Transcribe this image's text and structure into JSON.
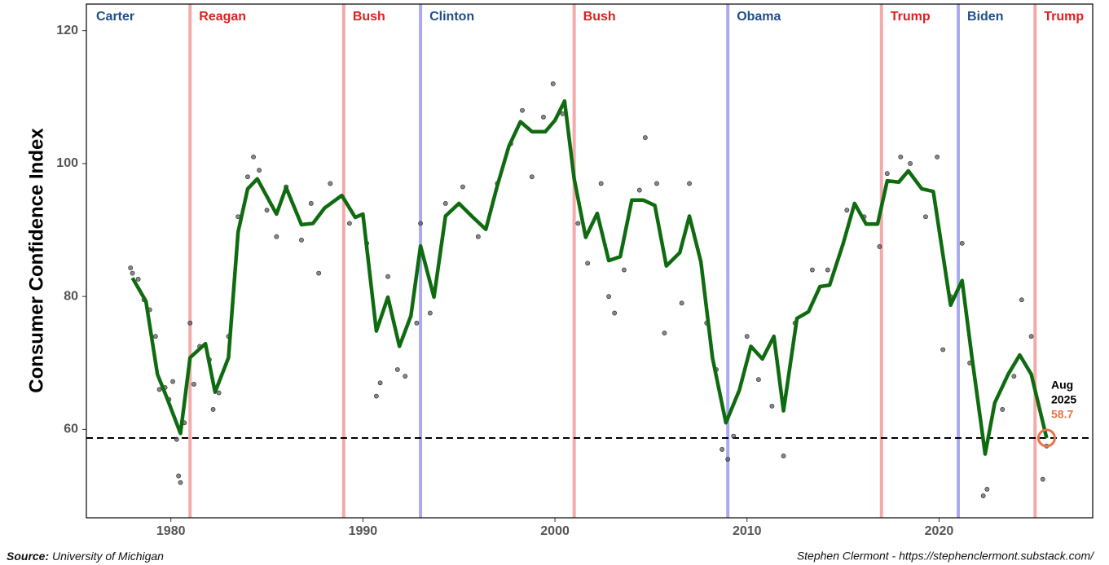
{
  "chart_data": {
    "type": "line",
    "y_label": "Consumer Confidence Index",
    "xlim": [
      1975.6,
      2028
    ],
    "xticks": [
      1980,
      1990,
      2000,
      2010,
      2020
    ],
    "ylim": [
      46.7,
      124
    ],
    "yticks": [
      60,
      80,
      100,
      120
    ],
    "reference_line": 58.7,
    "presidents": [
      {
        "name": "Carter",
        "label_color": "#1f4e8c"
      },
      {
        "name": "Reagan",
        "start": 1981,
        "label_color": "#e0201e",
        "line_color": "#f4aaaa"
      },
      {
        "name": "Bush",
        "start": 1989,
        "label_color": "#e0201e",
        "line_color": "#f4aaaa"
      },
      {
        "name": "Clinton",
        "start": 1993,
        "label_color": "#1f4e8c",
        "line_color": "#aaaaf0"
      },
      {
        "name": "Bush",
        "start": 2001,
        "label_color": "#e0201e",
        "line_color": "#f4aaaa"
      },
      {
        "name": "Obama",
        "start": 2009,
        "label_color": "#1f4e8c",
        "line_color": "#aaaaf0"
      },
      {
        "name": "Trump",
        "start": 2017,
        "label_color": "#e0201e",
        "line_color": "#f4aaaa"
      },
      {
        "name": "Biden",
        "start": 2021,
        "label_color": "#1f4e8c",
        "line_color": "#aaaaf0"
      },
      {
        "name": "Trump",
        "start": 2025,
        "label_color": "#e0201e",
        "line_color": "#f4aaaa"
      }
    ],
    "series": [
      {
        "type": "scatter",
        "color": "#555555",
        "x": [
          1977.9,
          1978.0,
          1978.3,
          1978.6,
          1978.9,
          1979.2,
          1979.4,
          1979.7,
          1979.9,
          1980.1,
          1980.3,
          1980.4,
          1980.5,
          1980.7,
          1981.0,
          1981.2,
          1981.5,
          1982.0,
          1982.2,
          1982.5,
          1983.0,
          1983.5,
          1984.0,
          1984.3,
          1984.6,
          1985.0,
          1985.5,
          1986.0,
          1986.8,
          1987.3,
          1987.7,
          1988.3,
          1989.3,
          1990.2,
          1990.7,
          1990.9,
          1991.3,
          1991.8,
          1992.2,
          1992.8,
          1993.0,
          1993.5,
          1994.3,
          1995.2,
          1996.0,
          1997.0,
          1997.7,
          1998.3,
          1998.8,
          1999.4,
          1999.9,
          2000.4,
          2001.2,
          2001.7,
          2002.4,
          2002.8,
          2003.1,
          2003.6,
          2004.4,
          2004.7,
          2005.3,
          2005.7,
          2006.6,
          2007.0,
          2007.9,
          2008.4,
          2008.7,
          2009.0,
          2009.3,
          2010.0,
          2010.6,
          2011.3,
          2011.9,
          2012.5,
          2013.4,
          2014.2,
          2015.2,
          2016.1,
          2016.9,
          2017.3,
          2018.0,
          2018.5,
          2019.3,
          2019.9,
          2020.2,
          2020.6,
          2021.2,
          2021.6,
          2022.3,
          2022.5,
          2023.3,
          2023.9,
          2024.3,
          2024.8,
          2025.4,
          2025.6
        ],
        "values": [
          84.3,
          83.5,
          82.6,
          79.5,
          78.0,
          74.0,
          66.0,
          66.3,
          64.5,
          67.2,
          58.5,
          53.0,
          52.0,
          61.0,
          76.0,
          66.8,
          72.5,
          70.5,
          63.0,
          65.5,
          74.0,
          92.0,
          98.0,
          101.0,
          99.0,
          93.0,
          89.0,
          96.5,
          88.5,
          94.0,
          83.5,
          97.0,
          91.0,
          88.0,
          65.0,
          67.0,
          83.0,
          69.0,
          68.0,
          76.0,
          91.0,
          77.5,
          94.0,
          96.5,
          89.0,
          97.0,
          103.0,
          108.0,
          98.0,
          107.0,
          112.0,
          107.5,
          91.0,
          85.0,
          97.0,
          80.0,
          77.5,
          84.0,
          96.0,
          103.9,
          97.0,
          74.5,
          79.0,
          97.0,
          76.0,
          69.0,
          57.0,
          55.5,
          59.0,
          74.0,
          67.5,
          63.5,
          56.0,
          76.0,
          84.0,
          84.0,
          93.0,
          92.0,
          87.5,
          98.5,
          101.0,
          100.0,
          92.0,
          101.0,
          72.0,
          80.0,
          88.0,
          70.0,
          50.0,
          51.0,
          63.0,
          68.0,
          79.5,
          74.0,
          52.5,
          57.5
        ]
      },
      {
        "type": "line",
        "color": "#0f6b0f",
        "x": [
          1978.0,
          1978.7,
          1979.3,
          1979.8,
          1980.5,
          1981.0,
          1981.8,
          1982.3,
          1983.0,
          1983.5,
          1984.0,
          1984.5,
          1985.5,
          1986.0,
          1986.8,
          1987.4,
          1988.0,
          1988.9,
          1989.6,
          1990.0,
          1990.7,
          1991.3,
          1991.9,
          1992.5,
          1993.0,
          1993.7,
          1994.3,
          1995.0,
          1995.7,
          1996.4,
          1997.0,
          1997.6,
          1998.2,
          1998.8,
          1999.5,
          2000.0,
          2000.5,
          2001.0,
          2001.6,
          2002.2,
          2002.8,
          2003.4,
          2004.0,
          2004.6,
          2005.2,
          2005.8,
          2006.5,
          2007.0,
          2007.6,
          2008.2,
          2008.9,
          2009.6,
          2010.2,
          2010.8,
          2011.4,
          2011.9,
          2012.6,
          2013.2,
          2013.8,
          2014.3,
          2015.0,
          2015.6,
          2016.2,
          2016.8,
          2017.3,
          2017.9,
          2018.4,
          2019.1,
          2019.7,
          2020.6,
          2021.2,
          2021.7,
          2022.4,
          2022.9,
          2023.6,
          2024.2,
          2024.8,
          2025.6
        ],
        "values": [
          82.8,
          79.3,
          68.3,
          64.7,
          59.4,
          70.8,
          72.9,
          65.6,
          70.8,
          89.7,
          96.2,
          97.7,
          92.4,
          96.4,
          90.8,
          91.0,
          93.3,
          95.2,
          91.9,
          92.4,
          74.8,
          79.9,
          72.5,
          77.1,
          87.6,
          79.9,
          92.1,
          94.0,
          92.0,
          90.1,
          96.7,
          102.6,
          106.3,
          104.8,
          104.8,
          106.5,
          109.4,
          97.7,
          88.9,
          92.5,
          85.4,
          86.0,
          94.5,
          94.5,
          93.7,
          84.6,
          86.6,
          92.1,
          85.2,
          70.8,
          61.0,
          65.9,
          72.5,
          70.6,
          74.0,
          62.8,
          76.7,
          77.7,
          81.5,
          81.7,
          87.9,
          94.0,
          90.9,
          90.9,
          97.4,
          97.2,
          98.9,
          96.2,
          95.8,
          78.7,
          82.4,
          71.1,
          56.3,
          64.0,
          68.3,
          71.2,
          68.3,
          58.7
        ]
      }
    ],
    "annotation": {
      "lines": [
        "Aug",
        "2025"
      ],
      "value": 58.7,
      "value_label": "58.7",
      "color": "#e5734a"
    },
    "source_label": "Source:",
    "source": "University of Michigan",
    "credit": "Stephen Clermont - https://stephenclermont.substack.com/"
  }
}
